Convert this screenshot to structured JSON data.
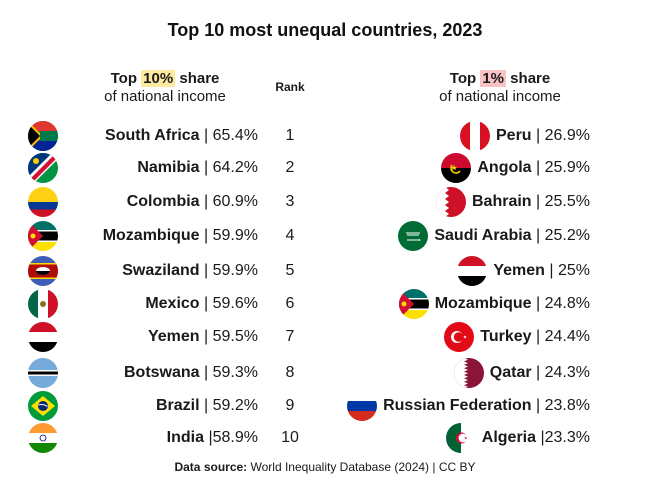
{
  "title": "Top 10 most unequal countries, 2023",
  "headers": {
    "left_pre": "Top ",
    "left_hl": "10%",
    "left_post": " share",
    "left_sub": "of national income",
    "rank": "Rank",
    "right_pre": "Top ",
    "right_hl": "1%",
    "right_post": " share",
    "right_sub": "of national income"
  },
  "colors": {
    "highlight_10": "#fde9a0",
    "highlight_1": "#f9c3c3"
  },
  "chart_data": {
    "type": "table",
    "title": "Top 10 most unequal countries, 2023",
    "columns": [
      "Top 10% share of national income",
      "Rank",
      "Top 1% share of national income"
    ],
    "top10": [
      {
        "country": "South Africa",
        "value": "| 65.4%",
        "flag": "south-africa-flag"
      },
      {
        "country": "Namibia",
        "value": "| 64.2%",
        "flag": "namibia-flag"
      },
      {
        "country": "Colombia",
        "value": "| 60.9%",
        "flag": "colombia-flag"
      },
      {
        "country": "Mozambique",
        "value": "| 59.9%",
        "flag": "mozambique-flag"
      },
      {
        "country": "Swaziland",
        "value": "| 59.9%",
        "flag": "swaziland-flag"
      },
      {
        "country": "Mexico",
        "value": "| 59.6%",
        "flag": "mexico-flag"
      },
      {
        "country": "Yemen",
        "value": "| 59.5%",
        "flag": "yemen-flag"
      },
      {
        "country": "Botswana",
        "value": "| 59.3%",
        "flag": "botswana-flag"
      },
      {
        "country": "Brazil",
        "value": "| 59.2%",
        "flag": "brazil-flag"
      },
      {
        "country": "India",
        "value": "|58.9%",
        "flag": "india-flag"
      }
    ],
    "ranks": [
      "1",
      "2",
      "3",
      "4",
      "5",
      "6",
      "7",
      "8",
      "9",
      "10"
    ],
    "top1": [
      {
        "country": "Peru",
        "value": "| 26.9%",
        "flag": "peru-flag"
      },
      {
        "country": "Angola",
        "value": "| 25.9%",
        "flag": "angola-flag"
      },
      {
        "country": "Bahrain",
        "value": "| 25.5%",
        "flag": "bahrain-flag"
      },
      {
        "country": "Saudi Arabia",
        "value": "| 25.2%",
        "flag": "saudi-arabia-flag"
      },
      {
        "country": "Yemen",
        "value": "| 25%",
        "flag": "yemen-flag"
      },
      {
        "country": "Mozambique",
        "value": "| 24.8%",
        "flag": "mozambique-flag"
      },
      {
        "country": "Turkey",
        "value": "| 24.4%",
        "flag": "turkey-flag"
      },
      {
        "country": "Qatar",
        "value": "| 24.3%",
        "flag": "qatar-flag"
      },
      {
        "country": "Russian Federation",
        "value": "| 23.8%",
        "flag": "russia-flag"
      },
      {
        "country": "Algeria",
        "value": "|23.3%",
        "flag": "algeria-flag"
      }
    ]
  },
  "source": {
    "label": "Data source:",
    "text": " World Inequality Database (2024) | CC BY"
  }
}
